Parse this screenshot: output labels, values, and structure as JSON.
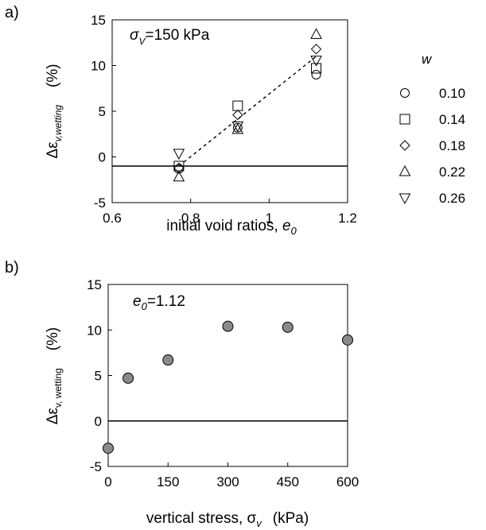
{
  "chart_data": [
    {
      "panel": "a)",
      "type": "scatter",
      "annotation": {
        "sym": "σ",
        "sub": "V",
        "rest": "=150 kPa"
      },
      "xlabel": {
        "text": "initial void ratios, ",
        "sym": "e",
        "sub": "0"
      },
      "ylabel": {
        "pre": "Δε",
        "sub": "v,wetting",
        "unit": "(%)"
      },
      "xlim": [
        0.6,
        1.2
      ],
      "ylim": [
        -5,
        15
      ],
      "xticks": [
        "0.6",
        "0.8",
        "1",
        "1.2"
      ],
      "yticks": [
        "-5",
        "0",
        "5",
        "10",
        "15"
      ],
      "legend_title": "w",
      "legend_position": "right",
      "series": [
        {
          "name": "0.10",
          "marker": "circle",
          "x": [
            0.77,
            0.92,
            1.12
          ],
          "y": [
            -1.3,
            3.2,
            9.0
          ]
        },
        {
          "name": "0.14",
          "marker": "square",
          "x": [
            0.77,
            0.92,
            1.12
          ],
          "y": [
            -1.0,
            5.6,
            9.7
          ]
        },
        {
          "name": "0.18",
          "marker": "diamond",
          "x": [
            0.77,
            0.92,
            1.12
          ],
          "y": [
            -1.2,
            4.6,
            11.8
          ]
        },
        {
          "name": "0.22",
          "marker": "triangle-up",
          "x": [
            0.77,
            0.92,
            1.12
          ],
          "y": [
            -2.2,
            3.0,
            13.4
          ]
        },
        {
          "name": "0.26",
          "marker": "triangle-down",
          "x": [
            0.77,
            0.92,
            1.12
          ],
          "y": [
            0.4,
            3.4,
            10.6
          ]
        }
      ],
      "trend_line": {
        "x": [
          0.77,
          1.12
        ],
        "y": [
          -1.0,
          11.0
        ],
        "style": "dashed"
      },
      "reference_line": {
        "y": -1.0
      }
    },
    {
      "panel": "b)",
      "type": "scatter",
      "annotation": {
        "sym": "e",
        "sub": "0",
        "rest": "=1.12"
      },
      "xlabel": {
        "text": "vertical stress, σ",
        "sub": "v",
        "unit": "(kPa)"
      },
      "ylabel": {
        "pre": "Δε",
        "sub": "v, wetting",
        "unit": "(%)"
      },
      "xlim": [
        0,
        600
      ],
      "ylim": [
        -5,
        15
      ],
      "xticks": [
        "0",
        "150",
        "300",
        "450",
        "600"
      ],
      "yticks": [
        "-5",
        "0",
        "5",
        "10",
        "15"
      ],
      "series": [
        {
          "marker": "filled-circle",
          "color": "#8a8a8a",
          "x": [
            0,
            50,
            150,
            300,
            450,
            600
          ],
          "y": [
            -3.0,
            4.7,
            6.7,
            10.4,
            10.3,
            8.9
          ]
        }
      ],
      "reference_line": {
        "y": 0
      }
    }
  ]
}
